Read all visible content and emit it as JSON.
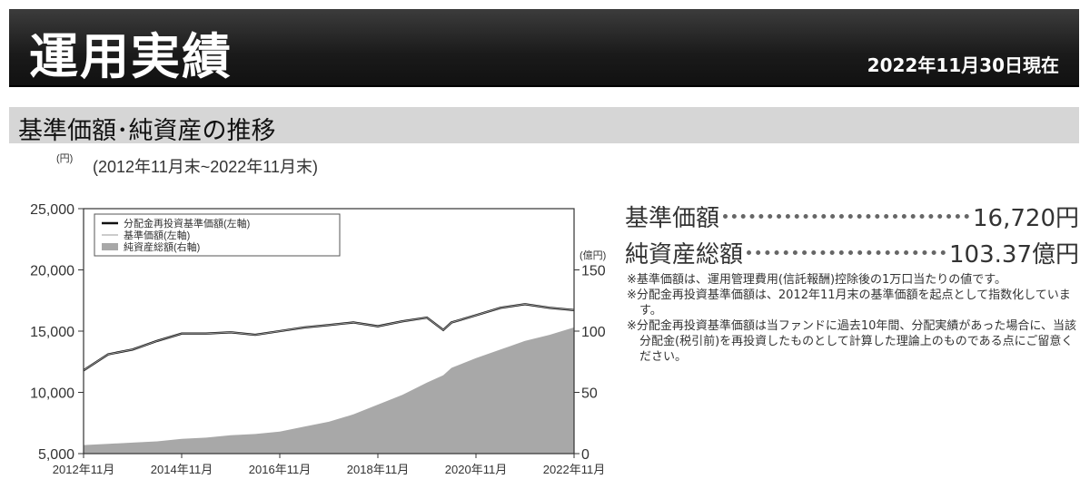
{
  "header": {
    "title": "運用実績",
    "date": "2022年11月30日現在"
  },
  "section": {
    "title": "基準価額･純資産の推移"
  },
  "chart_data": {
    "type": "line",
    "period": "(2012年11月末~2022年11月末)",
    "left_unit": "(円)",
    "right_unit": "(億円)",
    "x_ticks": [
      "2012年11月",
      "2014年11月",
      "2016年11月",
      "2018年11月",
      "2020年11月",
      "2022年11月"
    ],
    "x": [
      "2012-11",
      "2013-05",
      "2013-11",
      "2014-05",
      "2014-11",
      "2015-05",
      "2015-11",
      "2016-05",
      "2016-11",
      "2017-05",
      "2017-11",
      "2018-05",
      "2018-11",
      "2019-05",
      "2019-11",
      "2020-03",
      "2020-05",
      "2020-11",
      "2021-05",
      "2021-11",
      "2022-05",
      "2022-11"
    ],
    "left_axis": {
      "ylim": [
        5000,
        25000
      ],
      "ticks": [
        "5,000",
        "10,000",
        "15,000",
        "20,000",
        "25,000"
      ]
    },
    "right_axis": {
      "ylim": [
        0,
        200
      ],
      "ticks": [
        "0",
        "50",
        "100",
        "150"
      ]
    },
    "grid": false,
    "legend_position": "top-left",
    "series": [
      {
        "name": "分配金再投資基準価額(左軸)",
        "axis": "left",
        "style": "line",
        "color": "#111111",
        "values": [
          11800,
          13100,
          13500,
          14200,
          14800,
          14800,
          14900,
          14700,
          15000,
          15300,
          15500,
          15700,
          15400,
          15800,
          16100,
          15100,
          15700,
          16300,
          16900,
          17200,
          16900,
          16720
        ]
      },
      {
        "name": "基準価額(左軸)",
        "axis": "left",
        "style": "line",
        "color": "#9a9a9a",
        "values": [
          11800,
          13100,
          13500,
          14200,
          14800,
          14800,
          14900,
          14700,
          15000,
          15300,
          15500,
          15700,
          15400,
          15800,
          16100,
          15100,
          15700,
          16300,
          16900,
          17200,
          16900,
          16720
        ]
      },
      {
        "name": "純資産総額(右軸)",
        "axis": "right",
        "style": "area",
        "color": "#a8a8a8",
        "values": [
          7,
          8,
          9,
          10,
          12,
          13,
          15,
          16,
          18,
          22,
          26,
          32,
          40,
          48,
          58,
          64,
          70,
          78,
          85,
          92,
          97,
          103
        ]
      }
    ]
  },
  "summary": [
    {
      "label": "基準価額",
      "value": "16,720円"
    },
    {
      "label": "純資産総額",
      "value": "103.37億円"
    }
  ],
  "notes": [
    "※基準価額は、運用管理費用(信託報酬)控除後の1万口当たりの値です。",
    "※分配金再投資基準価額は、2012年11月末の基準価額を起点として指数化しています。",
    "※分配金再投資基準価額は当ファンドに過去10年間、分配実績があった場合に、当該分配金(税引前)を再投資したものとして計算した理論上のものである点にご留意ください。"
  ]
}
